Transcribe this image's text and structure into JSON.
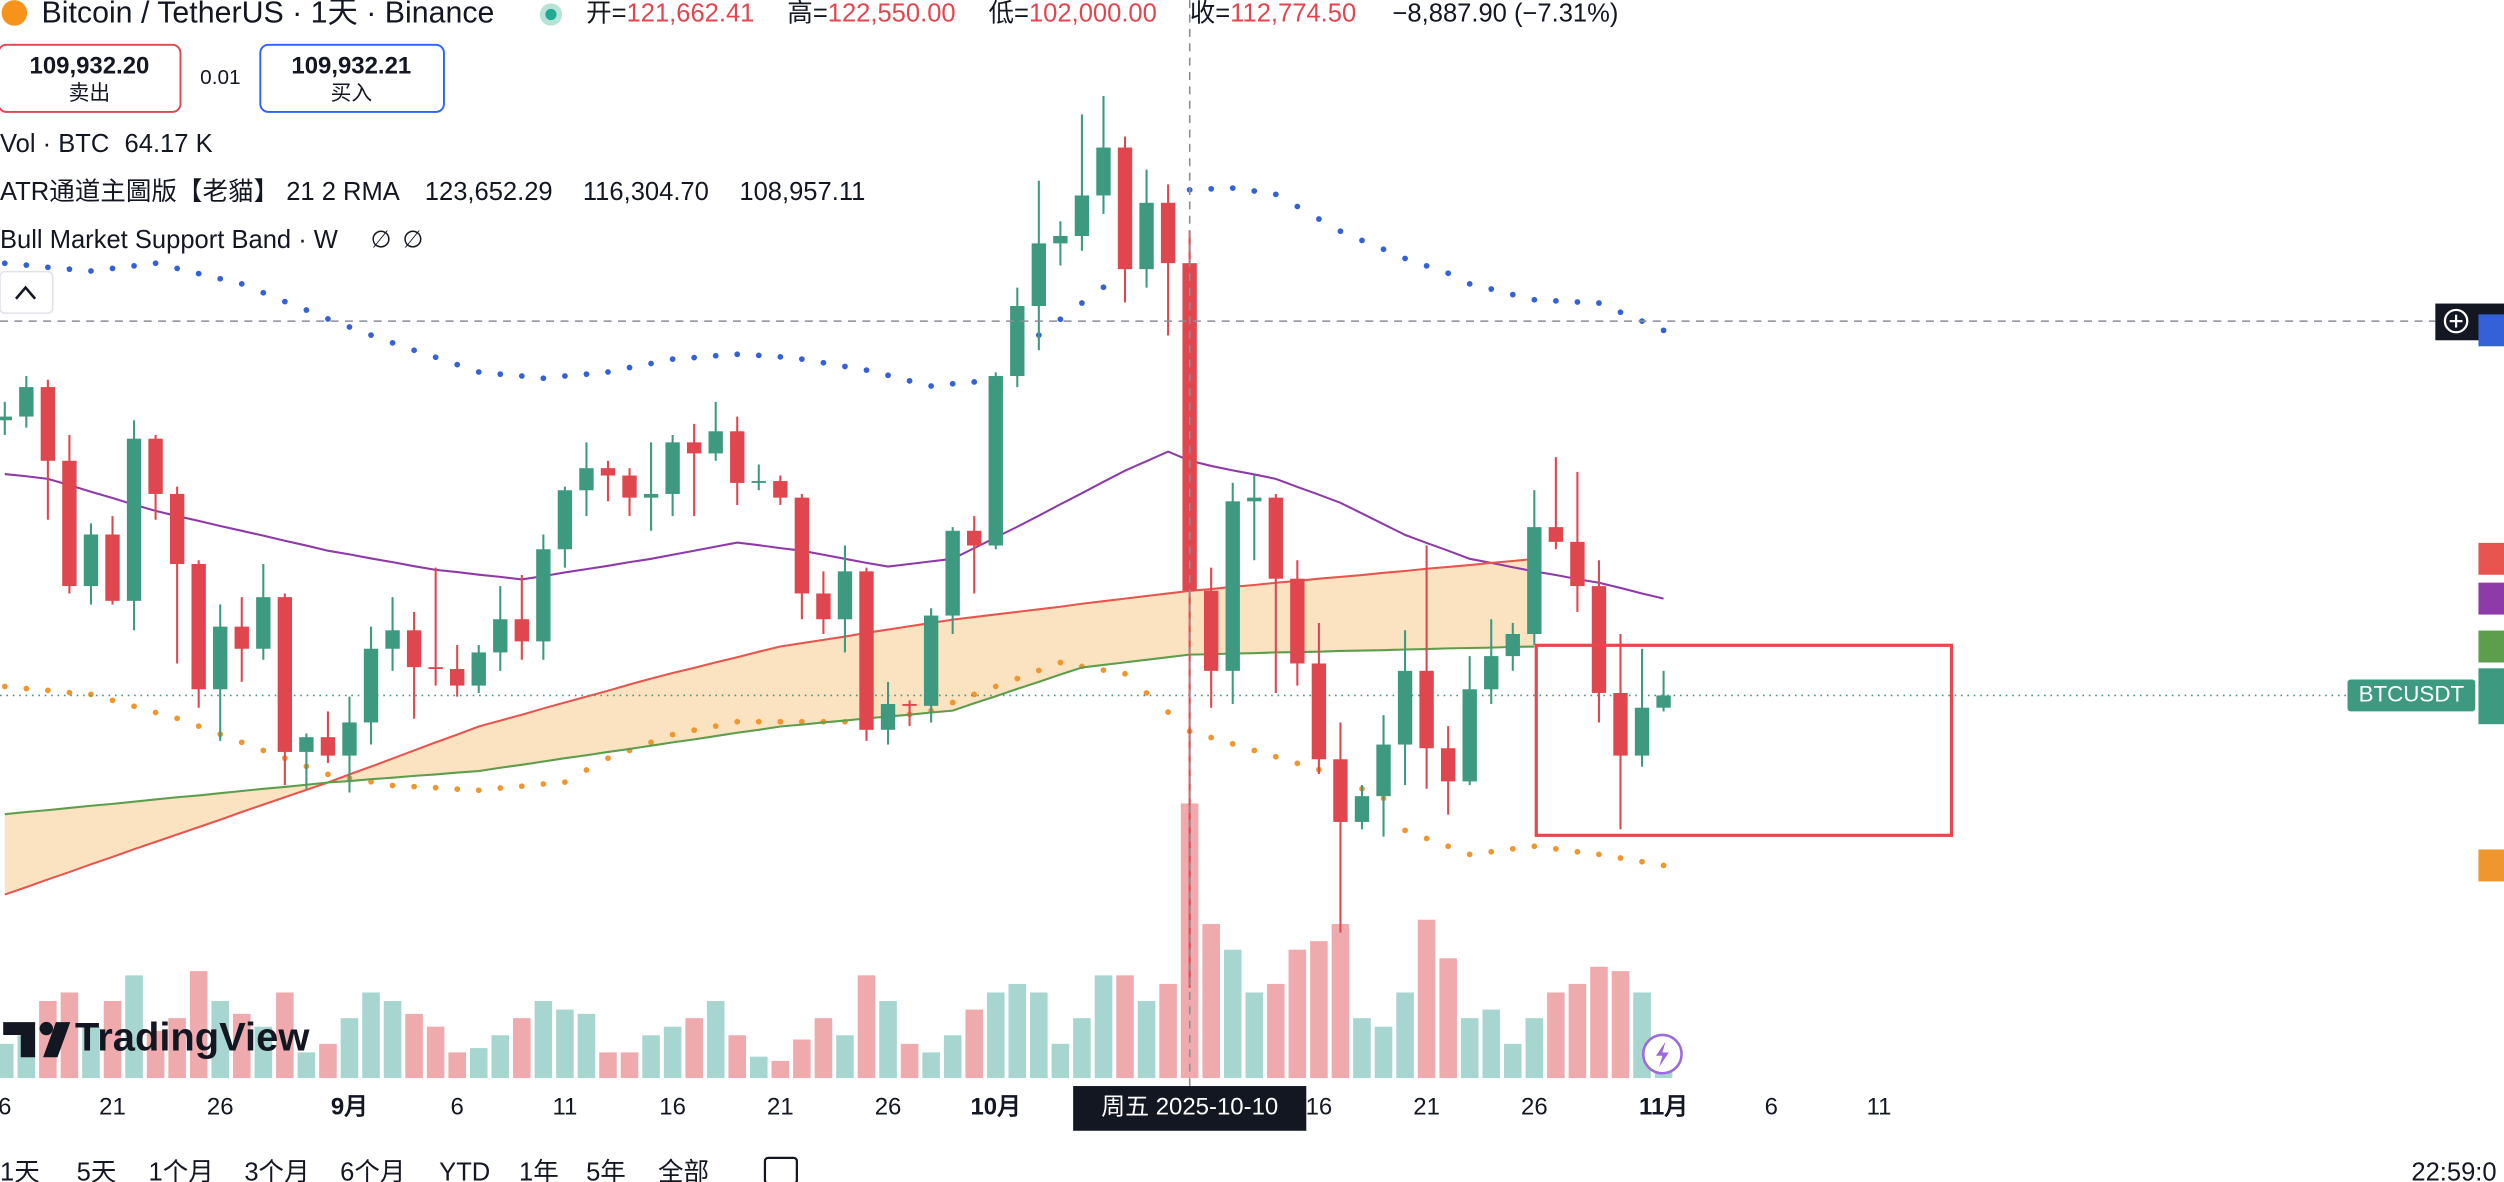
{
  "header": {
    "symbol": "Bitcoin / TetherUS · 1天 · Binance",
    "o_key": "开=",
    "o": "121,662.41",
    "h_key": "高=",
    "h": "122,550.00",
    "l_key": "低=",
    "l": "102,000.00",
    "c_key": "收=",
    "c": "112,774.50",
    "change": "−8,887.90 (−7.31%)"
  },
  "trade": {
    "sell_price": "109,932.20",
    "sell": "卖出",
    "spread": "0.01",
    "buy_price": "109,932.21",
    "buy": "买入"
  },
  "indicators": [
    {
      "name": "Vol · BTC",
      "values": [
        "64.17 K"
      ]
    },
    {
      "name": "ATR通道主圖版【老貓】 21 2 RMA",
      "values": [
        "123,652.29",
        "116,304.70",
        "108,957.11"
      ]
    },
    {
      "name": "Bull Market Support Band · W",
      "values": [
        "∅",
        "∅"
      ]
    }
  ],
  "crosshair_label": "周五 2025-10-10",
  "price_tag": "BTCUSDT",
  "brand": "TradingView",
  "ranges": [
    "1天",
    "5天",
    "1个月",
    "3个月",
    "6个月",
    "YTD",
    "1年",
    "5年",
    "全部"
  ],
  "clock": "22:59:0",
  "chart_data": {
    "type": "candlestick",
    "up_color": "#3d9a81",
    "down_color": "#e0464e",
    "volume_up_color": "#a7d5cf",
    "volume_down_color": "#efaaad",
    "ylim": [
      99550,
      128800
    ],
    "y2lim": [
      0,
      251900
    ],
    "categories": [
      "6",
      null,
      null,
      null,
      null,
      "21",
      null,
      null,
      null,
      null,
      "26",
      null,
      null,
      null,
      null,
      null,
      "9月",
      null,
      null,
      null,
      null,
      "6",
      null,
      null,
      null,
      null,
      "11",
      null,
      null,
      null,
      null,
      "16",
      null,
      null,
      null,
      null,
      "21",
      null,
      null,
      null,
      null,
      "26",
      null,
      null,
      null,
      null,
      "10月",
      null,
      null,
      null,
      null,
      null,
      null,
      null,
      null,
      null,
      null,
      null,
      null,
      null,
      null,
      "16",
      null,
      null,
      null,
      null,
      "21",
      null,
      null,
      null,
      null,
      "26",
      null,
      null,
      null,
      null,
      null,
      "11月",
      null,
      null,
      null,
      null,
      "6",
      null,
      null,
      null,
      null,
      "11"
    ],
    "open": [
      117400,
      117500,
      118300,
      116300,
      112900,
      114300,
      112500,
      116900,
      115400,
      113500,
      110100,
      111800,
      111200,
      112600,
      108400,
      108800,
      108300,
      109200,
      111200,
      111700,
      110700,
      110650,
      110200,
      111100,
      112000,
      111400,
      113900,
      115500,
      116100,
      115900,
      115300,
      115400,
      116800,
      116500,
      117100,
      115700,
      115750,
      115300,
      112700,
      112000,
      113300,
      109000,
      109700,
      109650,
      112100,
      114400,
      114000,
      118600,
      120500,
      122200,
      122400,
      123500,
      124800,
      121500,
      123300,
      121662.41,
      112774.5,
      110600,
      115200,
      115300,
      113100,
      110800,
      108200,
      106500,
      107200,
      108600,
      110600,
      108500,
      107600,
      110100,
      111000,
      111600,
      114500,
      114100,
      112900,
      110000,
      108300,
      109600,
      null,
      null,
      null,
      null,
      null,
      null,
      null,
      null,
      null,
      null
    ],
    "high": [
      117900,
      118600,
      118500,
      117000,
      114600,
      114800,
      117400,
      117000,
      115600,
      113600,
      112400,
      112600,
      113500,
      112700,
      108900,
      109500,
      109900,
      111800,
      112600,
      112200,
      113400,
      111300,
      111300,
      112900,
      113200,
      114300,
      115600,
      116800,
      116300,
      116100,
      116800,
      117000,
      117300,
      117900,
      117500,
      116200,
      115900,
      115400,
      113300,
      114000,
      113400,
      110300,
      109800,
      112300,
      114500,
      114800,
      118700,
      121000,
      123900,
      122800,
      125700,
      126200,
      125100,
      124200,
      123800,
      122550,
      113400,
      115700,
      115900,
      115400,
      113600,
      111900,
      109200,
      107500,
      109400,
      111700,
      114000,
      109100,
      111000,
      112000,
      111900,
      115500,
      116400,
      116000,
      113600,
      111600,
      111200,
      110600,
      null,
      null,
      null,
      null,
      null,
      null,
      null,
      null,
      null,
      null
    ],
    "low": [
      117000,
      117200,
      114700,
      112700,
      112400,
      112400,
      111700,
      114700,
      110800,
      109600,
      108700,
      110300,
      110900,
      107500,
      107400,
      108100,
      107300,
      108600,
      110600,
      109300,
      110200,
      109900,
      110000,
      110600,
      110900,
      110900,
      113400,
      114800,
      115200,
      114800,
      114400,
      114800,
      114800,
      116300,
      115100,
      115500,
      115100,
      112000,
      111600,
      111100,
      108700,
      108600,
      109100,
      109200,
      111600,
      112700,
      113900,
      118300,
      119300,
      121600,
      122000,
      123000,
      120600,
      121000,
      119700,
      102000,
      109600,
      109700,
      113600,
      110000,
      110200,
      107800,
      103500,
      106300,
      106100,
      107500,
      107400,
      106700,
      107500,
      109700,
      110600,
      111300,
      113900,
      112200,
      109200,
      106300,
      108000,
      109500,
      null,
      null,
      null,
      null,
      null,
      null,
      null,
      null,
      null,
      null
    ],
    "close": [
      117500,
      118300,
      116300,
      112900,
      114300,
      112500,
      116900,
      115400,
      113500,
      110100,
      111800,
      111200,
      112600,
      108400,
      108800,
      108300,
      109200,
      111200,
      111700,
      110700,
      110650,
      110200,
      111100,
      112000,
      111400,
      113900,
      115500,
      116100,
      115900,
      115300,
      115400,
      116800,
      116500,
      117100,
      115700,
      115750,
      115300,
      112700,
      112000,
      113300,
      109000,
      109700,
      109650,
      112100,
      114400,
      114000,
      118600,
      120500,
      122200,
      122400,
      123500,
      124800,
      121500,
      123300,
      121662.41,
      112774.5,
      110600,
      115200,
      115300,
      113100,
      110800,
      108200,
      106500,
      107200,
      108600,
      110600,
      108500,
      107600,
      110100,
      111000,
      111600,
      114500,
      114100,
      112900,
      110000,
      108300,
      109600,
      109932.2,
      null,
      null,
      null,
      null,
      null,
      null,
      null,
      null,
      null,
      null
    ],
    "volume": [
      8000,
      10000,
      18000,
      20000,
      12000,
      18000,
      24000,
      11000,
      14000,
      25000,
      18000,
      15000,
      12000,
      20000,
      6000,
      8000,
      14000,
      20000,
      18000,
      15000,
      12000,
      6000,
      7000,
      10000,
      14000,
      18000,
      16000,
      15000,
      6000,
      6000,
      10000,
      12000,
      14000,
      18000,
      10000,
      5000,
      4000,
      9000,
      14000,
      10000,
      24000,
      18000,
      8000,
      6000,
      10000,
      16000,
      20000,
      22000,
      20000,
      8000,
      14000,
      24000,
      24000,
      18000,
      22000,
      64170,
      36000,
      30000,
      20000,
      22000,
      30000,
      32000,
      36000,
      14000,
      12000,
      20000,
      37000,
      28000,
      14000,
      16000,
      8000,
      14000,
      20000,
      22000,
      26000,
      25000,
      20000,
      6000,
      null,
      null,
      null,
      null,
      null,
      null,
      null,
      null,
      null,
      null
    ],
    "overlays": [
      {
        "style": "dots",
        "color": "#3461d8",
        "values": [
          121660,
          121610,
          121550,
          121500,
          121450,
          121520,
          121590,
          121660,
          121520,
          121380,
          121240,
          121100,
          120860,
          120620,
          120390,
          120150,
          119930,
          119710,
          119500,
          119300,
          119110,
          118910,
          118710,
          118650,
          118600,
          118540,
          118600,
          118650,
          118710,
          118830,
          118940,
          119060,
          119100,
          119150,
          119190,
          119160,
          119120,
          119060,
          118960,
          118860,
          118760,
          118620,
          118470,
          118330,
          118390,
          118440,
          118500,
          119100,
          119710,
          120140,
          120580,
          121010,
          121660,
          122310,
          122960,
          123652.29,
          123680,
          123700,
          123620,
          123530,
          123200,
          122860,
          122530,
          122280,
          122040,
          121790,
          121590,
          121390,
          121100,
          120960,
          120810,
          120670,
          120640,
          120610,
          120580,
          120330,
          120090,
          119840,
          null,
          null,
          null,
          null,
          null,
          null,
          null,
          null,
          null,
          null
        ]
      },
      {
        "style": "line",
        "color": "#8e3aa8",
        "values": [
          115940,
          115880,
          115810,
          115640,
          115460,
          115290,
          115110,
          114940,
          114800,
          114670,
          114530,
          114400,
          114270,
          114130,
          114000,
          113860,
          113760,
          113650,
          113550,
          113440,
          113340,
          113280,
          113210,
          113150,
          113080,
          113170,
          113270,
          113360,
          113450,
          113550,
          113640,
          113750,
          113860,
          113970,
          114080,
          114010,
          113930,
          113860,
          113750,
          113640,
          113530,
          113430,
          113500,
          113570,
          113640,
          113930,
          114220,
          114510,
          114810,
          115120,
          115420,
          115730,
          116030,
          116290,
          116550,
          116304.7,
          116160,
          116040,
          115930,
          115810,
          115590,
          115380,
          115160,
          114870,
          114580,
          114290,
          114070,
          113860,
          113640,
          113530,
          113410,
          113300,
          113200,
          113090,
          112990,
          112850,
          112700,
          112560,
          null,
          null,
          null,
          null,
          null,
          null,
          null,
          null,
          null,
          null
        ]
      },
      {
        "style": "dots",
        "color": "#f0962e",
        "values": [
          110175,
          110120,
          110070,
          110010,
          109960,
          109800,
          109640,
          109470,
          109310,
          109100,
          108880,
          108660,
          108440,
          108230,
          108010,
          107790,
          107690,
          107590,
          107490,
          107460,
          107430,
          107390,
          107360,
          107420,
          107470,
          107530,
          107580,
          107910,
          108230,
          108440,
          108660,
          108870,
          108990,
          109100,
          109220,
          109220,
          109220,
          109220,
          109220,
          109220,
          109220,
          109320,
          109420,
          109520,
          109740,
          109960,
          110175,
          110390,
          110610,
          110825,
          110720,
          110620,
          110520,
          110000,
          109480,
          108957.11,
          108790,
          108620,
          108440,
          108270,
          108090,
          107920,
          107660,
          107400,
          107140,
          106270,
          106050,
          105840,
          105620,
          105690,
          105770,
          105840,
          105770,
          105690,
          105620,
          105520,
          105420,
          105320,
          null,
          null,
          null,
          null,
          null,
          null,
          null,
          null,
          null,
          null
        ]
      },
      {
        "style": "line",
        "color": "#e8554e",
        "fill": "#fbe2c0",
        "values": [
          104530,
          104730,
          104940,
          105140,
          105350,
          105550,
          105760,
          105960,
          106160,
          106360,
          106560,
          106770,
          106970,
          107170,
          107370,
          107570,
          107790,
          108000,
          108220,
          108440,
          108660,
          108870,
          109090,
          109250,
          109410,
          109580,
          109740,
          109900,
          110060,
          110230,
          110390,
          110540,
          110680,
          110830,
          110970,
          111120,
          111260,
          111350,
          111440,
          111530,
          111630,
          111720,
          111810,
          111900,
          111990,
          112060,
          112130,
          112200,
          112270,
          112340,
          112420,
          112490,
          112560,
          112630,
          112700,
          112770,
          112820,
          112880,
          112930,
          112990,
          113040,
          113100,
          113150,
          113200,
          113260,
          113310,
          113370,
          113420,
          113470,
          113530,
          113580,
          113640,
          null,
          null,
          null,
          null,
          null,
          null,
          null,
          null,
          null,
          null,
          null,
          null,
          null,
          null,
          null,
          null
        ]
      },
      {
        "style": "line",
        "color": "#5d9e4c",
        "values": [
          106710,
          106770,
          106820,
          106880,
          106940,
          106990,
          107050,
          107110,
          107170,
          107220,
          107280,
          107340,
          107400,
          107450,
          107510,
          107570,
          107610,
          107660,
          107700,
          107750,
          107790,
          107840,
          107880,
          107970,
          108050,
          108140,
          108230,
          108310,
          108400,
          108480,
          108570,
          108660,
          108740,
          108830,
          108920,
          109000,
          109090,
          109140,
          109200,
          109250,
          109310,
          109360,
          109410,
          109470,
          109520,
          109720,
          109910,
          110110,
          110300,
          110500,
          110690,
          110760,
          110830,
          110900,
          110970,
          111040,
          111050,
          111070,
          111080,
          111100,
          111110,
          111120,
          111140,
          111150,
          111160,
          111180,
          111190,
          111210,
          111220,
          111230,
          111250,
          111260,
          null,
          null,
          null,
          null,
          null,
          null,
          null,
          null,
          null,
          null,
          null,
          null,
          null,
          null,
          null,
          null
        ]
      }
    ]
  }
}
